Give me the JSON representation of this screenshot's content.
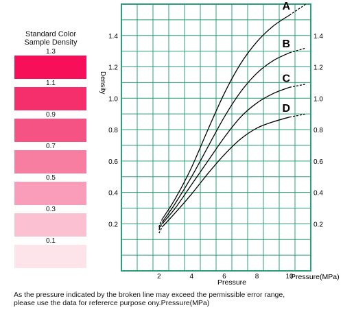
{
  "legend": {
    "title_line1": "Standard Color",
    "title_line2": "Sample Density",
    "swatches": [
      {
        "label": "1.3",
        "color": "#f70f5a"
      },
      {
        "label": "1.1",
        "color": "#f52f6c"
      },
      {
        "label": "0.9",
        "color": "#f55384"
      },
      {
        "label": "0.7",
        "color": "#f77ea1"
      },
      {
        "label": "0.5",
        "color": "#f99dba"
      },
      {
        "label": "0.3",
        "color": "#fbc1d3"
      },
      {
        "label": "0.1",
        "color": "#fde3ea"
      }
    ]
  },
  "footnote": {
    "line1": "As the pressure indicated by the broken line may exceed the permissible error range,",
    "line2": "please use the data for refererce purpose ony.Pressure(MPa)"
  },
  "chart_data": {
    "type": "line",
    "xlabel": "Pressure",
    "xlabel_right": "Pressure(MPa)",
    "ylabel": "Density",
    "xlim": [
      -0.3,
      11.3
    ],
    "ylim": [
      -0.1,
      1.6
    ],
    "x_ticks": [
      2,
      4,
      6,
      8,
      10
    ],
    "y_ticks": [
      0.2,
      0.4,
      0.6,
      0.8,
      1.0,
      1.2,
      1.4
    ],
    "x_tick_labels": [
      "2",
      "4",
      "6",
      "8",
      "10"
    ],
    "y_tick_labels": [
      "0.2",
      "0.4",
      "0.6",
      "0.8",
      "1.0",
      "1.2",
      "1.4"
    ],
    "grid": true,
    "grid_color": "#2a9d7a",
    "line_color": "#000000",
    "dashed_segment_note": "segments below x=2.2 and above x=10 are drawn dashed",
    "series": [
      {
        "name": "A",
        "x": [
          2.0,
          2.2,
          3,
          4,
          5,
          6,
          7,
          8,
          9,
          10,
          11
        ],
        "y": [
          0.18,
          0.23,
          0.36,
          0.56,
          0.8,
          1.03,
          1.22,
          1.36,
          1.46,
          1.53,
          1.6
        ]
      },
      {
        "name": "B",
        "x": [
          2.0,
          2.2,
          3,
          4,
          5,
          6,
          7,
          8,
          9,
          10,
          11
        ],
        "y": [
          0.17,
          0.21,
          0.33,
          0.5,
          0.69,
          0.88,
          1.04,
          1.16,
          1.24,
          1.29,
          1.32
        ]
      },
      {
        "name": "C",
        "x": [
          2.0,
          2.2,
          3,
          4,
          5,
          6,
          7,
          8,
          9,
          10,
          11
        ],
        "y": [
          0.16,
          0.2,
          0.3,
          0.45,
          0.6,
          0.75,
          0.88,
          0.97,
          1.03,
          1.07,
          1.09
        ]
      },
      {
        "name": "D",
        "x": [
          2.0,
          2.2,
          3,
          4,
          5,
          6,
          7,
          8,
          9,
          10,
          11
        ],
        "y": [
          0.14,
          0.18,
          0.27,
          0.39,
          0.52,
          0.64,
          0.74,
          0.81,
          0.85,
          0.88,
          0.9
        ]
      }
    ]
  }
}
